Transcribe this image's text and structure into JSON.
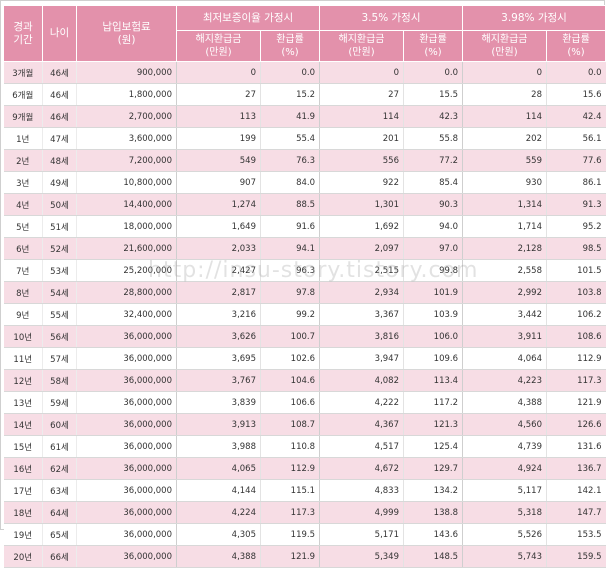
{
  "table": {
    "headers": {
      "period": "경과 기간",
      "age": "나이",
      "premium": "납입보험료 (원)",
      "groups": [
        "최저보증이율 가정시",
        "3.5% 가정시",
        "3.98% 가정시"
      ],
      "refund": "해지환급금 (만원)",
      "rate": "환급률 (%)"
    },
    "rows": [
      {
        "period": "3개월",
        "age": "46세",
        "premium": "900,000",
        "g1_refund": "0",
        "g1_rate": "0.0",
        "g2_refund": "0",
        "g2_rate": "0.0",
        "g3_refund": "0",
        "g3_rate": "0.0"
      },
      {
        "period": "6개월",
        "age": "46세",
        "premium": "1,800,000",
        "g1_refund": "27",
        "g1_rate": "15.2",
        "g2_refund": "27",
        "g2_rate": "15.5",
        "g3_refund": "28",
        "g3_rate": "15.6"
      },
      {
        "period": "9개월",
        "age": "46세",
        "premium": "2,700,000",
        "g1_refund": "113",
        "g1_rate": "41.9",
        "g2_refund": "114",
        "g2_rate": "42.3",
        "g3_refund": "114",
        "g3_rate": "42.4"
      },
      {
        "period": "1년",
        "age": "47세",
        "premium": "3,600,000",
        "g1_refund": "199",
        "g1_rate": "55.4",
        "g2_refund": "201",
        "g2_rate": "55.8",
        "g3_refund": "202",
        "g3_rate": "56.1"
      },
      {
        "period": "2년",
        "age": "48세",
        "premium": "7,200,000",
        "g1_refund": "549",
        "g1_rate": "76.3",
        "g2_refund": "556",
        "g2_rate": "77.2",
        "g3_refund": "559",
        "g3_rate": "77.6"
      },
      {
        "period": "3년",
        "age": "49세",
        "premium": "10,800,000",
        "g1_refund": "907",
        "g1_rate": "84.0",
        "g2_refund": "922",
        "g2_rate": "85.4",
        "g3_refund": "930",
        "g3_rate": "86.1"
      },
      {
        "period": "4년",
        "age": "50세",
        "premium": "14,400,000",
        "g1_refund": "1,274",
        "g1_rate": "88.5",
        "g2_refund": "1,301",
        "g2_rate": "90.3",
        "g3_refund": "1,314",
        "g3_rate": "91.3"
      },
      {
        "period": "5년",
        "age": "51세",
        "premium": "18,000,000",
        "g1_refund": "1,649",
        "g1_rate": "91.6",
        "g2_refund": "1,692",
        "g2_rate": "94.0",
        "g3_refund": "1,714",
        "g3_rate": "95.2"
      },
      {
        "period": "6년",
        "age": "52세",
        "premium": "21,600,000",
        "g1_refund": "2,033",
        "g1_rate": "94.1",
        "g2_refund": "2,097",
        "g2_rate": "97.0",
        "g3_refund": "2,128",
        "g3_rate": "98.5"
      },
      {
        "period": "7년",
        "age": "53세",
        "premium": "25,200,000",
        "g1_refund": "2,427",
        "g1_rate": "96.3",
        "g2_refund": "2,515",
        "g2_rate": "99.8",
        "g3_refund": "2,558",
        "g3_rate": "101.5"
      },
      {
        "period": "8년",
        "age": "54세",
        "premium": "28,800,000",
        "g1_refund": "2,817",
        "g1_rate": "97.8",
        "g2_refund": "2,934",
        "g2_rate": "101.9",
        "g3_refund": "2,992",
        "g3_rate": "103.8"
      },
      {
        "period": "9년",
        "age": "55세",
        "premium": "32,400,000",
        "g1_refund": "3,216",
        "g1_rate": "99.2",
        "g2_refund": "3,367",
        "g2_rate": "103.9",
        "g3_refund": "3,442",
        "g3_rate": "106.2"
      },
      {
        "period": "10년",
        "age": "56세",
        "premium": "36,000,000",
        "g1_refund": "3,626",
        "g1_rate": "100.7",
        "g2_refund": "3,816",
        "g2_rate": "106.0",
        "g3_refund": "3,911",
        "g3_rate": "108.6"
      },
      {
        "period": "11년",
        "age": "57세",
        "premium": "36,000,000",
        "g1_refund": "3,695",
        "g1_rate": "102.6",
        "g2_refund": "3,947",
        "g2_rate": "109.6",
        "g3_refund": "4,064",
        "g3_rate": "112.9"
      },
      {
        "period": "12년",
        "age": "58세",
        "premium": "36,000,000",
        "g1_refund": "3,767",
        "g1_rate": "104.6",
        "g2_refund": "4,082",
        "g2_rate": "113.4",
        "g3_refund": "4,223",
        "g3_rate": "117.3"
      },
      {
        "period": "13년",
        "age": "59세",
        "premium": "36,000,000",
        "g1_refund": "3,839",
        "g1_rate": "106.6",
        "g2_refund": "4,222",
        "g2_rate": "117.2",
        "g3_refund": "4,388",
        "g3_rate": "121.9"
      },
      {
        "period": "14년",
        "age": "60세",
        "premium": "36,000,000",
        "g1_refund": "3,913",
        "g1_rate": "108.7",
        "g2_refund": "4,367",
        "g2_rate": "121.3",
        "g3_refund": "4,560",
        "g3_rate": "126.6"
      },
      {
        "period": "15년",
        "age": "61세",
        "premium": "36,000,000",
        "g1_refund": "3,988",
        "g1_rate": "110.8",
        "g2_refund": "4,517",
        "g2_rate": "125.4",
        "g3_refund": "4,739",
        "g3_rate": "131.6"
      },
      {
        "period": "16년",
        "age": "62세",
        "premium": "36,000,000",
        "g1_refund": "4,065",
        "g1_rate": "112.9",
        "g2_refund": "4,672",
        "g2_rate": "129.7",
        "g3_refund": "4,924",
        "g3_rate": "136.7"
      },
      {
        "period": "17년",
        "age": "63세",
        "premium": "36,000,000",
        "g1_refund": "4,144",
        "g1_rate": "115.1",
        "g2_refund": "4,833",
        "g2_rate": "134.2",
        "g3_refund": "5,117",
        "g3_rate": "142.1"
      },
      {
        "period": "18년",
        "age": "64세",
        "premium": "36,000,000",
        "g1_refund": "4,224",
        "g1_rate": "117.3",
        "g2_refund": "4,999",
        "g2_rate": "138.8",
        "g3_refund": "5,318",
        "g3_rate": "147.7"
      },
      {
        "period": "19년",
        "age": "65세",
        "premium": "36,000,000",
        "g1_refund": "4,305",
        "g1_rate": "119.5",
        "g2_refund": "5,171",
        "g2_rate": "143.6",
        "g3_refund": "5,526",
        "g3_rate": "153.5"
      },
      {
        "period": "20년",
        "age": "66세",
        "premium": "36,000,000",
        "g1_refund": "4,388",
        "g1_rate": "121.9",
        "g2_refund": "5,349",
        "g2_rate": "148.5",
        "g3_refund": "5,743",
        "g3_rate": "159.5"
      }
    ]
  },
  "watermark": "http://insu-story.tistory.com",
  "colors": {
    "header_bg": "#e391ab",
    "stripe_bg": "#f7dde5"
  }
}
